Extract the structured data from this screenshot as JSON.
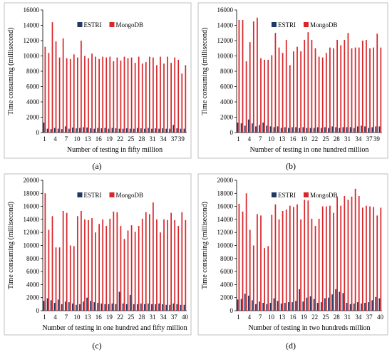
{
  "figure_title": "",
  "chart_data": [
    {
      "type": "bar",
      "panel_label": "(a)",
      "xlabel": "Number of testing in fifty million",
      "ylabel": "Time consuming (millisecond)",
      "ylim": [
        0,
        16000
      ],
      "yticks": [
        "0",
        "2000",
        "4000",
        "6000",
        "8000",
        "10000",
        "12000",
        "14000",
        "16000"
      ],
      "xtick_labels": [
        "1",
        "4",
        "7",
        "10",
        "13",
        "16",
        "19",
        "22",
        "25",
        "28",
        "31",
        "34",
        "37",
        "39"
      ],
      "legend_position": "top",
      "categories": [
        1,
        2,
        3,
        4,
        5,
        6,
        7,
        8,
        9,
        10,
        11,
        12,
        13,
        14,
        15,
        16,
        17,
        18,
        19,
        20,
        21,
        22,
        23,
        24,
        25,
        26,
        27,
        28,
        29,
        30,
        31,
        32,
        33,
        34,
        35,
        36,
        37,
        38,
        39,
        40
      ],
      "series": [
        {
          "name": "ESTRI",
          "color": "#1f3864",
          "values": [
            1300,
            500,
            450,
            600,
            500,
            450,
            800,
            500,
            650,
            550,
            600,
            700,
            650,
            550,
            500,
            600,
            550,
            600,
            500,
            600,
            550,
            500,
            500,
            550,
            500,
            500,
            600,
            550,
            500,
            600,
            500,
            550,
            500,
            550,
            500,
            500,
            1000,
            550,
            500,
            500
          ]
        },
        {
          "name": "MongoDB",
          "color": "#d9262b",
          "values": [
            11200,
            10400,
            14400,
            11900,
            9800,
            12300,
            9700,
            9600,
            10200,
            9800,
            12000,
            10000,
            9700,
            10300,
            9900,
            9600,
            9900,
            9800,
            9900,
            9300,
            9800,
            9400,
            9900,
            9700,
            9800,
            9100,
            9900,
            9000,
            9200,
            9900,
            9800,
            8800,
            9900,
            9000,
            9900,
            9100,
            9800,
            9500,
            7700,
            8800
          ]
        }
      ]
    },
    {
      "type": "bar",
      "panel_label": "(b)",
      "xlabel": "Number of testing in one hundred million",
      "ylabel": "Time consuming (millisecond)",
      "ylim": [
        0,
        16000
      ],
      "yticks": [
        "0",
        "2000",
        "4000",
        "6000",
        "8000",
        "10000",
        "12000",
        "14000",
        "16000"
      ],
      "xtick_labels": [
        "1",
        "4",
        "7",
        "10",
        "13",
        "16",
        "19",
        "22",
        "25",
        "28",
        "31",
        "34",
        "37",
        "39"
      ],
      "legend_position": "top",
      "categories": [
        1,
        2,
        3,
        4,
        5,
        6,
        7,
        8,
        9,
        10,
        11,
        12,
        13,
        14,
        15,
        16,
        17,
        18,
        19,
        20,
        21,
        22,
        23,
        24,
        25,
        26,
        27,
        28,
        29,
        30,
        31,
        32,
        33,
        34,
        35,
        36,
        37,
        38,
        39,
        40
      ],
      "series": [
        {
          "name": "ESTRI",
          "color": "#1f3864",
          "values": [
            1300,
            1200,
            900,
            1700,
            1200,
            800,
            1000,
            1300,
            900,
            800,
            700,
            800,
            600,
            700,
            600,
            700,
            700,
            600,
            700,
            600,
            600,
            600,
            700,
            600,
            700,
            600,
            800,
            700,
            600,
            700,
            700,
            700,
            600,
            800,
            900,
            800,
            600,
            700,
            800,
            800
          ]
        },
        {
          "name": "MongoDB",
          "color": "#d9262b",
          "values": [
            14700,
            14700,
            9300,
            11800,
            14500,
            15000,
            9700,
            9500,
            9500,
            10100,
            13000,
            11100,
            10400,
            12100,
            8800,
            10600,
            11200,
            10600,
            12100,
            13100,
            12100,
            11000,
            9900,
            9800,
            10400,
            11100,
            11000,
            12100,
            11400,
            12100,
            13000,
            11000,
            11100,
            11100,
            12000,
            12100,
            11000,
            11100,
            12900,
            11100
          ]
        }
      ]
    },
    {
      "type": "bar",
      "panel_label": "(c)",
      "xlabel": "Number of testing in one hundred and fifty million",
      "ylabel": "Time consuming (millisecond)",
      "ylim": [
        0,
        20000
      ],
      "yticks": [
        "0",
        "2000",
        "4000",
        "6000",
        "8000",
        "10000",
        "12000",
        "14000",
        "16000",
        "18000",
        "20000"
      ],
      "xtick_labels": [
        "1",
        "4",
        "7",
        "10",
        "13",
        "16",
        "19",
        "22",
        "25",
        "28",
        "31",
        "34",
        "37",
        "40"
      ],
      "legend_position": "top",
      "categories": [
        1,
        2,
        3,
        4,
        5,
        6,
        7,
        8,
        9,
        10,
        11,
        12,
        13,
        14,
        15,
        16,
        17,
        18,
        19,
        20,
        21,
        22,
        23,
        24,
        25,
        26,
        27,
        28,
        29,
        30,
        31,
        32,
        33,
        34,
        35,
        36,
        37,
        38,
        39,
        40
      ],
      "series": [
        {
          "name": "ESTRI",
          "color": "#1f3864",
          "values": [
            1500,
            1900,
            1600,
            1200,
            1700,
            1000,
            1400,
            1300,
            1100,
            900,
            1000,
            1400,
            2000,
            1500,
            1300,
            1200,
            1100,
            1000,
            1000,
            1100,
            1000,
            2900,
            1100,
            1000,
            2400,
            1000,
            1000,
            1100,
            1000,
            1100,
            1000,
            1000,
            1100,
            1000,
            900,
            900,
            1100,
            1000,
            900,
            900
          ]
        },
        {
          "name": "MongoDB",
          "color": "#d9262b",
          "values": [
            18000,
            12400,
            14500,
            9700,
            9700,
            15300,
            15000,
            10000,
            9900,
            14500,
            15300,
            14000,
            13900,
            14200,
            12000,
            13300,
            14000,
            13000,
            14100,
            15200,
            15100,
            13000,
            11000,
            12300,
            13100,
            12100,
            13000,
            14100,
            15100,
            14800,
            16600,
            14000,
            12000,
            14000,
            13900,
            15000,
            13900,
            13000,
            15100,
            13900
          ]
        }
      ]
    },
    {
      "type": "bar",
      "panel_label": "(d)",
      "xlabel": "Number of testing in two hundreds million",
      "ylabel": "Time consuming (millisecond)",
      "ylim": [
        0,
        20000
      ],
      "yticks": [
        "0",
        "2000",
        "4000",
        "6000",
        "8000",
        "10000",
        "12000",
        "14000",
        "16000",
        "18000",
        "20000"
      ],
      "xtick_labels": [
        "1",
        "4",
        "7",
        "10",
        "13",
        "16",
        "19",
        "22",
        "25",
        "28",
        "31",
        "34",
        "37",
        "40"
      ],
      "legend_position": "top",
      "categories": [
        1,
        2,
        3,
        4,
        5,
        6,
        7,
        8,
        9,
        10,
        11,
        12,
        13,
        14,
        15,
        16,
        17,
        18,
        19,
        20,
        21,
        22,
        23,
        24,
        25,
        26,
        27,
        28,
        29,
        30,
        31,
        32,
        33,
        34,
        35,
        36,
        37,
        38,
        39,
        40
      ],
      "series": [
        {
          "name": "ESTRI",
          "color": "#1f3864",
          "values": [
            1700,
            1800,
            2600,
            2300,
            1600,
            1000,
            1400,
            1200,
            1000,
            1200,
            1900,
            1500,
            1100,
            1200,
            1300,
            1300,
            1500,
            3300,
            1400,
            2000,
            2200,
            1800,
            1200,
            1300,
            1900,
            2000,
            2500,
            3300,
            2900,
            2700,
            1200,
            1000,
            1100,
            1300,
            1100,
            1200,
            1300,
            1600,
            2100,
            1900
          ]
        },
        {
          "name": "MongoDB",
          "color": "#d9262b",
          "values": [
            16400,
            15200,
            18000,
            12400,
            10000,
            14800,
            14600,
            9600,
            9900,
            14700,
            16300,
            14000,
            15300,
            15500,
            16100,
            15900,
            16300,
            14000,
            17000,
            16900,
            14100,
            13000,
            14100,
            16000,
            16000,
            16100,
            15000,
            17500,
            16100,
            17600,
            17000,
            17500,
            18700,
            17600,
            15800,
            16100,
            16000,
            15900,
            14600,
            15800
          ]
        }
      ]
    }
  ]
}
